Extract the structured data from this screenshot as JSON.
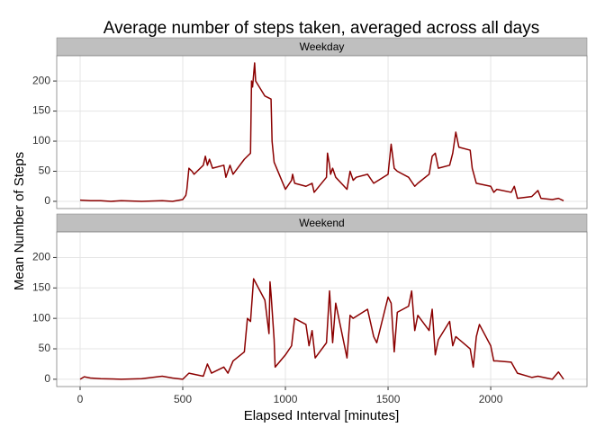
{
  "title": "Average number of steps taken, averaged across all days",
  "x_label": "Elapsed Interval [minutes]",
  "y_label": "Mean Number of Steps",
  "chart_data": [
    {
      "type": "line",
      "panel_title": "Weekday",
      "x": [
        0,
        50,
        100,
        150,
        200,
        300,
        400,
        450,
        500,
        515,
        520,
        530,
        545,
        555,
        600,
        610,
        620,
        630,
        645,
        700,
        710,
        720,
        730,
        745,
        800,
        815,
        830,
        835,
        840,
        845,
        850,
        855,
        900,
        930,
        935,
        945,
        1000,
        1030,
        1035,
        1045,
        1100,
        1130,
        1140,
        1200,
        1205,
        1215,
        1220,
        1230,
        1245,
        1300,
        1315,
        1330,
        1345,
        1400,
        1430,
        1500,
        1515,
        1530,
        1545,
        1600,
        1630,
        1645,
        1700,
        1715,
        1730,
        1745,
        1800,
        1815,
        1830,
        1845,
        1900,
        1910,
        1930,
        2000,
        2015,
        2030,
        2100,
        2115,
        2130,
        2200,
        2230,
        2245,
        2300,
        2330,
        2355
      ],
      "series": [
        {
          "color": "#8b0000",
          "values": [
            2,
            1,
            1,
            0,
            1,
            0,
            1,
            0,
            3,
            10,
            20,
            55,
            50,
            45,
            60,
            75,
            60,
            70,
            55,
            60,
            40,
            50,
            60,
            45,
            70,
            75,
            80,
            200,
            190,
            210,
            230,
            200,
            175,
            170,
            100,
            65,
            20,
            35,
            45,
            30,
            25,
            30,
            15,
            40,
            80,
            60,
            45,
            55,
            40,
            20,
            50,
            35,
            40,
            45,
            30,
            45,
            95,
            55,
            50,
            40,
            25,
            30,
            45,
            75,
            80,
            55,
            60,
            80,
            115,
            90,
            85,
            55,
            30,
            25,
            15,
            20,
            15,
            25,
            5,
            8,
            18,
            5,
            3,
            5,
            1
          ]
        }
      ],
      "xlim": [
        -114,
        2469
      ],
      "ylim": [
        -12,
        242
      ],
      "xticks": [
        0,
        500,
        1000,
        1500,
        2000
      ],
      "yticks": [
        0,
        50,
        100,
        150,
        200
      ],
      "grid": true
    },
    {
      "type": "line",
      "panel_title": "Weekend",
      "x": [
        0,
        20,
        50,
        100,
        200,
        300,
        400,
        450,
        500,
        530,
        600,
        620,
        640,
        700,
        720,
        745,
        800,
        815,
        830,
        845,
        900,
        920,
        925,
        930,
        945,
        950,
        1000,
        1030,
        1045,
        1100,
        1115,
        1130,
        1145,
        1200,
        1215,
        1230,
        1245,
        1300,
        1315,
        1330,
        1400,
        1430,
        1445,
        1500,
        1515,
        1530,
        1545,
        1600,
        1615,
        1630,
        1645,
        1700,
        1715,
        1730,
        1745,
        1800,
        1815,
        1830,
        1900,
        1915,
        1930,
        1945,
        2000,
        2015,
        2030,
        2100,
        2130,
        2200,
        2230,
        2300,
        2330,
        2355
      ],
      "series": [
        {
          "color": "#8b0000",
          "values": [
            0,
            4,
            2,
            1,
            0,
            1,
            5,
            2,
            0,
            10,
            5,
            25,
            10,
            20,
            10,
            30,
            45,
            100,
            95,
            165,
            130,
            75,
            160,
            140,
            65,
            20,
            40,
            55,
            100,
            90,
            55,
            80,
            35,
            60,
            145,
            60,
            125,
            35,
            105,
            100,
            115,
            70,
            60,
            135,
            125,
            45,
            110,
            120,
            145,
            80,
            105,
            80,
            115,
            40,
            65,
            95,
            55,
            70,
            50,
            20,
            70,
            90,
            55,
            30,
            30,
            28,
            10,
            3,
            5,
            0,
            12,
            0
          ]
        }
      ],
      "xlim": [
        -114,
        2469
      ],
      "ylim": [
        -12,
        242
      ],
      "xticks": [
        0,
        500,
        1000,
        1500,
        2000
      ],
      "yticks": [
        0,
        50,
        100,
        150,
        200
      ],
      "grid": true
    }
  ]
}
